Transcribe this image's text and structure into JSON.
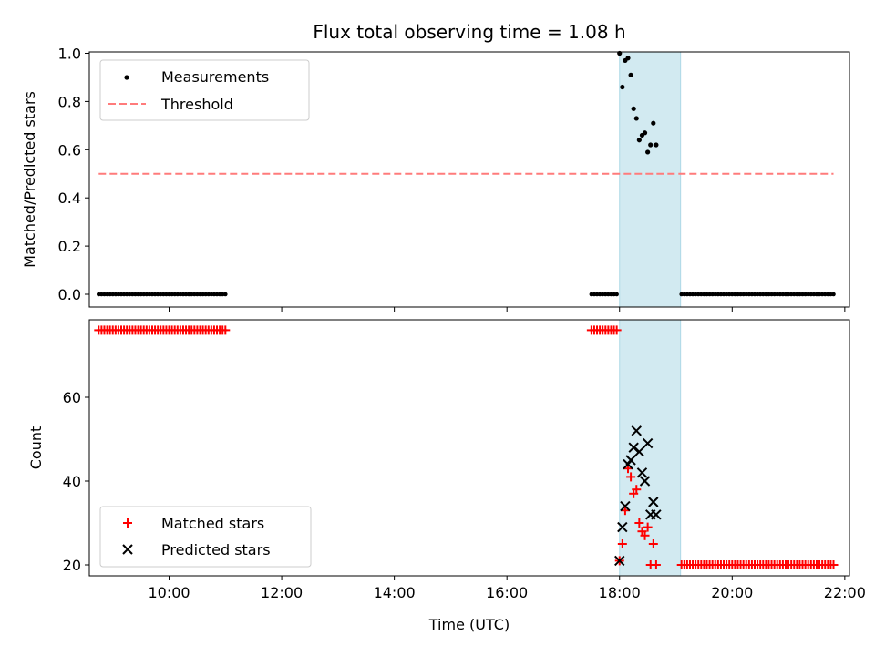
{
  "chart_data": [
    {
      "type": "scatter",
      "title": "Flux total observing time = 1.08 h",
      "xlabel": "",
      "ylabel": "Matched/Predicted stars",
      "ylim": [
        0,
        1.05
      ],
      "yticks": [
        "0.0",
        "0.2",
        "0.4",
        "0.6",
        "0.8",
        "1.0"
      ],
      "highlight_span": [
        "18:00",
        "19:05"
      ],
      "highlight_color": "#add8e6",
      "legend": {
        "placement": "upper-left"
      },
      "series": [
        {
          "name": "Measurements",
          "color": "#000000",
          "marker": "dot",
          "points": [
            [
              "18:00",
              1.0
            ],
            [
              "18:03",
              0.86
            ],
            [
              "18:06",
              0.97
            ],
            [
              "18:09",
              0.98
            ],
            [
              "18:12",
              0.91
            ],
            [
              "18:15",
              0.77
            ],
            [
              "18:18",
              0.73
            ],
            [
              "18:21",
              0.64
            ],
            [
              "18:24",
              0.66
            ],
            [
              "18:27",
              0.67
            ],
            [
              "18:30",
              0.59
            ],
            [
              "18:33",
              0.62
            ],
            [
              "18:36",
              0.71
            ],
            [
              "18:39",
              0.62
            ]
          ],
          "zero_runs": [
            {
              "from": "08:45",
              "to": "11:00",
              "step_min": 3
            },
            {
              "from": "17:30",
              "to": "17:57",
              "step_min": 3
            },
            {
              "from": "19:06",
              "to": "21:48",
              "step_min": 3
            }
          ]
        },
        {
          "name": "Threshold",
          "color": "#ff7b7b",
          "style": "dashed",
          "x_range": [
            "08:45",
            "21:48"
          ],
          "value": 0.5
        }
      ]
    },
    {
      "type": "scatter",
      "title": "",
      "xlabel": "Time (UTC)",
      "ylabel": "Count",
      "ylim": [
        17,
        79
      ],
      "yticks": [
        "20",
        "40",
        "60"
      ],
      "xticks": [
        "10:00",
        "12:00",
        "14:00",
        "16:00",
        "18:00",
        "20:00",
        "22:00"
      ],
      "highlight_span": [
        "18:00",
        "19:05"
      ],
      "legend": {
        "placement": "lower-left"
      },
      "series": [
        {
          "name": "Matched stars",
          "color": "#ff0000",
          "marker": "plus",
          "points": [
            [
              "18:00",
              21
            ],
            [
              "18:03",
              25
            ],
            [
              "18:06",
              33
            ],
            [
              "18:09",
              43
            ],
            [
              "18:12",
              41
            ],
            [
              "18:15",
              37
            ],
            [
              "18:18",
              38
            ],
            [
              "18:21",
              30
            ],
            [
              "18:24",
              28
            ],
            [
              "18:27",
              27
            ],
            [
              "18:30",
              29
            ],
            [
              "18:33",
              20
            ],
            [
              "18:36",
              25
            ],
            [
              "18:39",
              20
            ]
          ],
          "const_runs": [
            {
              "from": "08:45",
              "to": "11:00",
              "step_min": 3,
              "value": 76
            },
            {
              "from": "17:30",
              "to": "17:57",
              "step_min": 3,
              "value": 76
            },
            {
              "from": "19:06",
              "to": "21:48",
              "step_min": 3,
              "value": 20
            }
          ]
        },
        {
          "name": "Predicted stars",
          "color": "#000000",
          "marker": "x",
          "points": [
            [
              "18:00",
              21
            ],
            [
              "18:03",
              29
            ],
            [
              "18:06",
              34
            ],
            [
              "18:09",
              44
            ],
            [
              "18:12",
              45
            ],
            [
              "18:15",
              48
            ],
            [
              "18:18",
              52
            ],
            [
              "18:21",
              47
            ],
            [
              "18:24",
              42
            ],
            [
              "18:27",
              40
            ],
            [
              "18:30",
              49
            ],
            [
              "18:33",
              32
            ],
            [
              "18:36",
              35
            ],
            [
              "18:39",
              32
            ]
          ]
        }
      ]
    }
  ]
}
